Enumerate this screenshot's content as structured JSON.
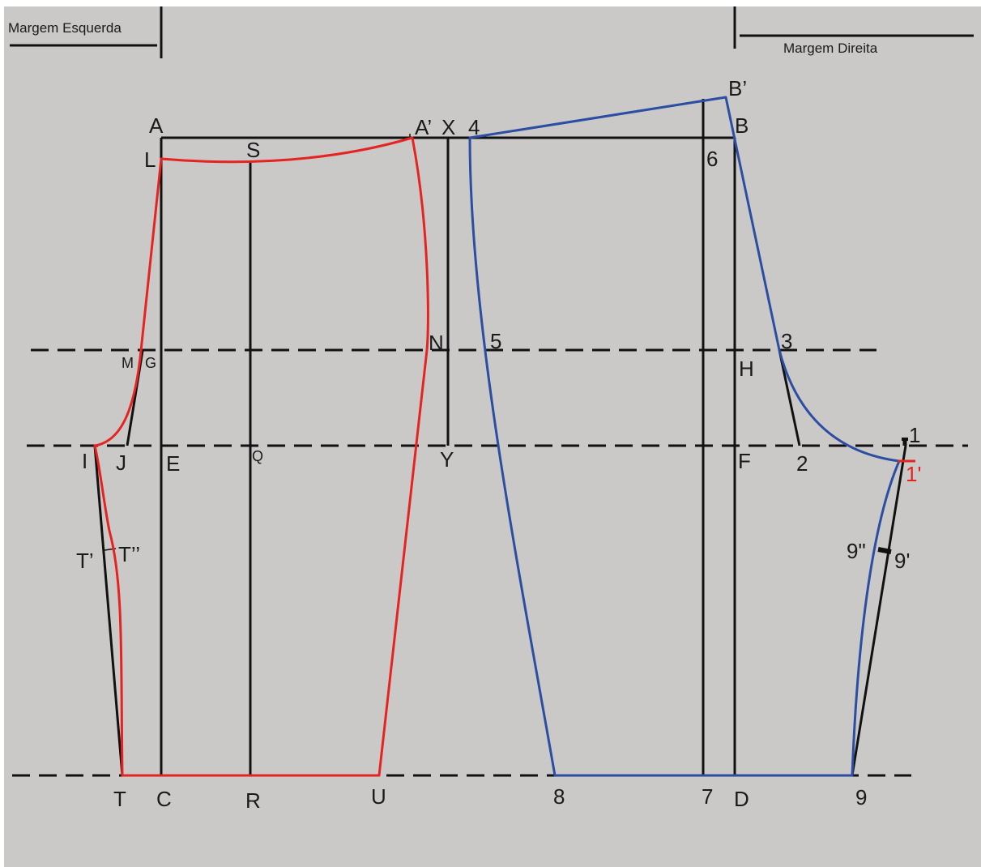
{
  "margins": {
    "left": "Margem Esquerda",
    "right": "Margem Direita"
  },
  "colors": {
    "background": "#cbc8c8",
    "construction": "#111111",
    "front_pattern": "#e52421",
    "back_pattern": "#2b4ea2"
  },
  "points": {
    "A": "A",
    "A_prime": "A’",
    "X": "X",
    "four": "4",
    "B_prime": "B’",
    "B": "B",
    "L": "L",
    "S": "S",
    "six": "6",
    "M": "M",
    "G": "G",
    "N": "N",
    "five": "5",
    "three": "3",
    "H": "H",
    "one": "1",
    "I": "I",
    "J": "J",
    "E": "E",
    "Q": "Q",
    "Y": "Y",
    "F": "F",
    "two": "2",
    "one_prime": "1'",
    "nine_double": "9\"",
    "nine_prime": "9'",
    "T_prime": "T’",
    "T_double": "T’’",
    "T": "T",
    "C": "C",
    "R": "R",
    "U": "U",
    "eight": "8",
    "seven": "7",
    "D": "D",
    "nine": "9"
  }
}
